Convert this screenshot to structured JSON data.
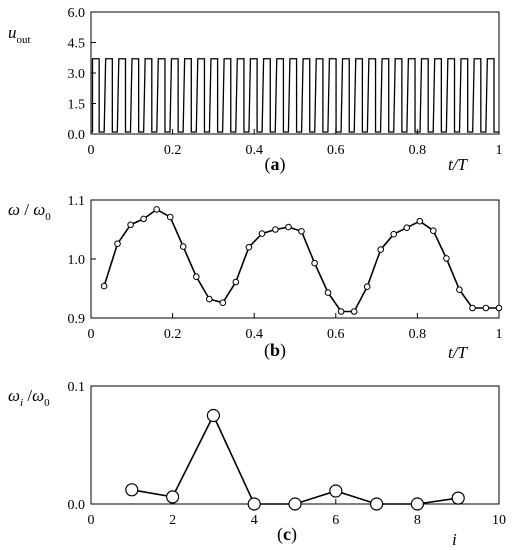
{
  "chart_data": [
    {
      "type": "line",
      "panel_label": {
        "open": "(",
        "letter": "a",
        "close": ")"
      },
      "ylabel": {
        "main": "u",
        "sub": "out"
      },
      "xlabel": "t/T",
      "xlim": [
        0,
        1
      ],
      "ylim": [
        0,
        6
      ],
      "xticks": [
        "0",
        "0.2",
        "0.4",
        "0.6",
        "0.8",
        "1"
      ],
      "yticks": [
        "0.0",
        "1.5",
        "3.0",
        "4.5",
        "6.0"
      ],
      "grid": false,
      "series": [
        {
          "signal": "square_pulse_train",
          "high": 3.7,
          "low": 0.1,
          "pulse_count": 31,
          "duty_high": 0.62
        }
      ]
    },
    {
      "type": "line",
      "panel_label": {
        "open": "(",
        "letter": "b",
        "close": ")"
      },
      "ylabel": {
        "num": "ω",
        "slash": " / ",
        "den": "ω",
        "den_sub": "0"
      },
      "xlabel": "t/T",
      "xlim": [
        0,
        1
      ],
      "ylim": [
        0.9,
        1.1
      ],
      "xticks": [
        "0",
        "0.2",
        "0.4",
        "0.6",
        "0.8",
        "1"
      ],
      "yticks": [
        "0.9",
        "1.0",
        "1.1"
      ],
      "grid": false,
      "marker": "small-circle",
      "series": [
        {
          "x": [
            0.032,
            0.065,
            0.097,
            0.129,
            0.161,
            0.194,
            0.226,
            0.258,
            0.29,
            0.323,
            0.355,
            0.387,
            0.419,
            0.452,
            0.484,
            0.516,
            0.548,
            0.581,
            0.613,
            0.645,
            0.677,
            0.71,
            0.742,
            0.774,
            0.806,
            0.839,
            0.871,
            0.903,
            0.935,
            0.968,
            1.0
          ],
          "y": [
            0.954,
            1.026,
            1.058,
            1.068,
            1.084,
            1.071,
            1.021,
            0.97,
            0.932,
            0.926,
            0.961,
            1.02,
            1.043,
            1.05,
            1.054,
            1.047,
            0.993,
            0.943,
            0.911,
            0.911,
            0.953,
            1.016,
            1.042,
            1.053,
            1.064,
            1.048,
            1.001,
            0.948,
            0.917,
            0.917,
            0.917
          ]
        }
      ]
    },
    {
      "type": "line",
      "panel_label": {
        "open": "(",
        "letter": "c",
        "close": ")"
      },
      "ylabel": {
        "num": "ω",
        "num_sub": "i",
        "slash": " /",
        "den": "ω",
        "den_sub": "0"
      },
      "xlabel": "i",
      "xlim": [
        0,
        10
      ],
      "ylim": [
        0,
        0.1
      ],
      "xticks": [
        "0",
        "2",
        "4",
        "6",
        "8",
        "10"
      ],
      "yticks": [
        "0.0",
        "0.1"
      ],
      "grid": false,
      "marker": "large-circle",
      "series": [
        {
          "x": [
            1,
            2,
            3,
            4,
            5,
            6,
            7,
            8,
            9
          ],
          "y": [
            0.012,
            0.006,
            0.075,
            0.0,
            0.0,
            0.011,
            0.0,
            0.0,
            0.005
          ]
        }
      ]
    }
  ]
}
